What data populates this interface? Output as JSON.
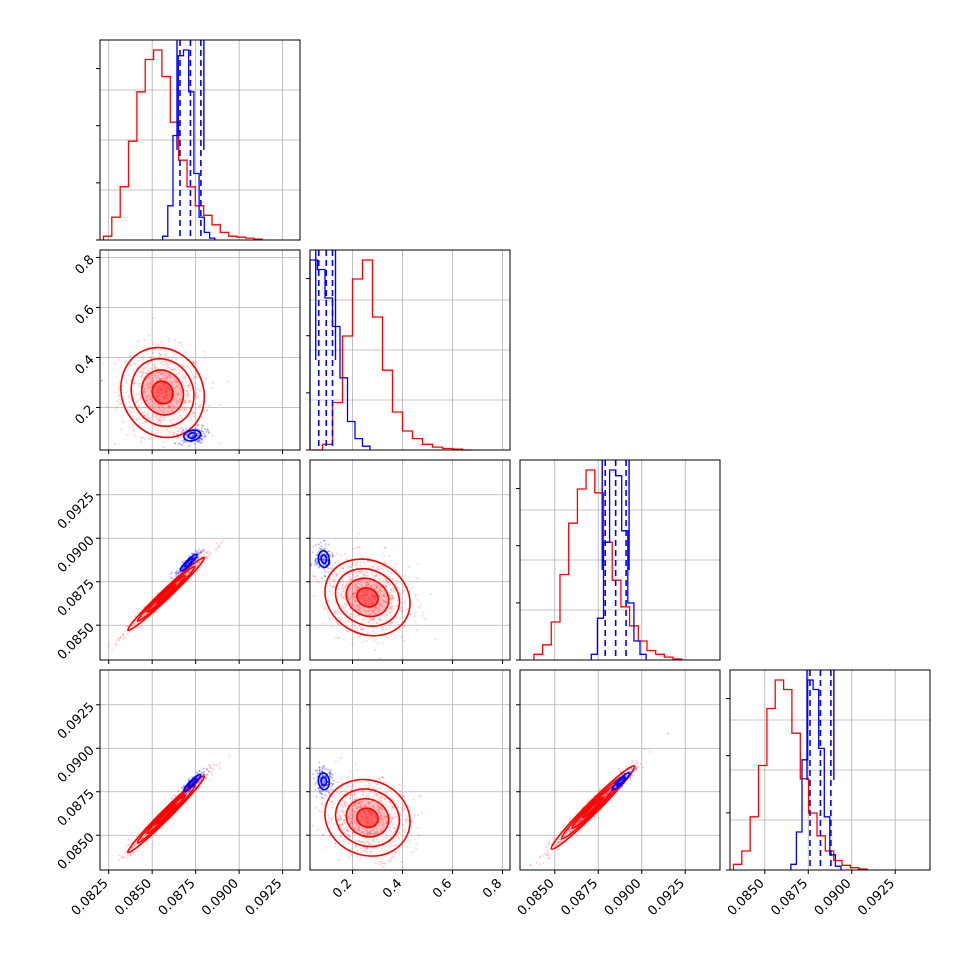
{
  "chart_data": {
    "type": "corner",
    "grid": true,
    "colors": {
      "sample_a": "#0000ff",
      "sample_b": "#ff0000",
      "grid": "#b0b0b0",
      "frame": "#000000"
    },
    "parameters": [
      {
        "range": [
          0.082,
          0.0935
        ],
        "ticks": [
          "0.0825",
          "0.0850",
          "0.0875",
          "0.0900",
          "0.0925"
        ]
      },
      {
        "range": [
          0.03,
          0.83
        ],
        "ticks": [
          "0.2",
          "0.4",
          "0.6",
          "0.8"
        ]
      },
      {
        "range": [
          0.083,
          0.0945
        ],
        "ticks": [
          "0.0850",
          "0.0875",
          "0.0900",
          "0.0925"
        ]
      },
      {
        "range": [
          0.083,
          0.0945
        ],
        "ticks": [
          "0.0850",
          "0.0875",
          "0.0900",
          "0.0925"
        ]
      }
    ],
    "x_tick_labels": [
      {
        "param": 0,
        "ticks": [
          "0.0825",
          "0.0850",
          "0.0875",
          "0.0900",
          "0.0925"
        ]
      },
      {
        "param": 1,
        "ticks": [
          "0.2",
          "0.4",
          "0.6",
          "0.8"
        ]
      },
      {
        "param": 2,
        "ticks": [
          "0.0850",
          "0.0875",
          "0.0900",
          "0.0925"
        ]
      },
      {
        "param": 3,
        "ticks": [
          "0.0850",
          "0.0875",
          "0.0900",
          "0.0925"
        ]
      }
    ],
    "y_tick_labels": [
      {
        "param": 1,
        "ticks": [
          "0.2",
          "0.4",
          "0.6",
          "0.8"
        ]
      },
      {
        "param": 2,
        "ticks": [
          "0.0850",
          "0.0875",
          "0.0900",
          "0.0925"
        ]
      },
      {
        "param": 3,
        "ticks": [
          "0.0850",
          "0.0875",
          "0.0900",
          "0.0925"
        ]
      }
    ],
    "marginals": [
      {
        "param": 0,
        "quantiles": [
          0.0866,
          0.0872,
          0.0878
        ],
        "red_bins": {
          "start": 0.0822,
          "width": 0.00048,
          "counts": [
            0.02,
            0.12,
            0.28,
            0.52,
            0.78,
            0.95,
            1.0,
            0.86,
            0.62,
            0.42,
            0.28,
            0.18,
            0.13,
            0.08,
            0.04,
            0.02,
            0.015,
            0.01,
            0.005
          ]
        },
        "blue_bins": {
          "start": 0.0856,
          "width": 0.0003,
          "counts": [
            0.02,
            0.18,
            0.55,
            0.97,
            1.0,
            0.78,
            0.35,
            0.12,
            0.04,
            0.01
          ]
        }
      },
      {
        "param": 1,
        "quantiles": [
          0.065,
          0.095,
          0.12
        ],
        "red_bins": {
          "start": 0.04,
          "width": 0.04,
          "counts": [
            0.0,
            0.03,
            0.25,
            0.6,
            0.9,
            1.0,
            0.7,
            0.42,
            0.2,
            0.1,
            0.06,
            0.03,
            0.015,
            0.008,
            0.004,
            0.0
          ]
        },
        "blue_bins": {
          "start": 0.03,
          "width": 0.03,
          "counts": [
            1.0,
            0.95,
            0.8,
            0.65,
            0.38,
            0.15,
            0.06,
            0.02
          ]
        }
      },
      {
        "param": 2,
        "quantiles": [
          0.0879,
          0.0885,
          0.0891
        ],
        "red_bins": {
          "start": 0.0838,
          "width": 0.0005,
          "counts": [
            0.03,
            0.08,
            0.2,
            0.45,
            0.72,
            0.9,
            1.0,
            0.88,
            0.62,
            0.42,
            0.28,
            0.18,
            0.1,
            0.05,
            0.03,
            0.015,
            0.005
          ]
        },
        "blue_bins": {
          "start": 0.0871,
          "width": 0.00035,
          "counts": [
            0.03,
            0.22,
            0.62,
            1.0,
            0.97,
            0.68,
            0.3,
            0.1,
            0.03
          ]
        }
      },
      {
        "param": 3,
        "quantiles": [
          0.0876,
          0.0882,
          0.0888
        ],
        "red_bins": {
          "start": 0.0832,
          "width": 0.00048,
          "counts": [
            0.03,
            0.1,
            0.28,
            0.55,
            0.85,
            1.0,
            0.95,
            0.72,
            0.48,
            0.3,
            0.18,
            0.1,
            0.05,
            0.025,
            0.012,
            0.005
          ]
        },
        "blue_bins": {
          "start": 0.0865,
          "width": 0.00032,
          "counts": [
            0.03,
            0.2,
            0.58,
            1.0,
            0.95,
            0.64,
            0.28,
            0.08,
            0.02
          ]
        }
      }
    ],
    "pairs": [
      {
        "px": 0,
        "py": 1,
        "red": {
          "center": [
            0.0856,
            0.26
          ],
          "sx": 0.0012,
          "sy": 0.09,
          "rho": -0.1
        },
        "blue": {
          "center": [
            0.0873,
            0.088
          ],
          "sx": 0.0004,
          "sy": 0.018,
          "rho": 0.2
        }
      },
      {
        "px": 0,
        "py": 2,
        "red": {
          "center": [
            0.0858,
            0.0868
          ],
          "sx": 0.0011,
          "sy": 0.00105,
          "rho": 0.985
        },
        "blue": {
          "center": [
            0.0871,
            0.0886
          ],
          "sx": 0.0004,
          "sy": 0.0004,
          "rho": 0.9
        }
      },
      {
        "px": 0,
        "py": 3,
        "red": {
          "center": [
            0.0858,
            0.0862
          ],
          "sx": 0.0011,
          "sy": 0.0011,
          "rho": 0.985
        },
        "blue": {
          "center": [
            0.0873,
            0.088
          ],
          "sx": 0.0004,
          "sy": 0.0004,
          "rho": 0.9
        }
      },
      {
        "px": 1,
        "py": 2,
        "red": {
          "center": [
            0.26,
            0.0866
          ],
          "sx": 0.085,
          "sy": 0.0011,
          "rho": -0.15
        },
        "blue": {
          "center": [
            0.085,
            0.0888
          ],
          "sx": 0.018,
          "sy": 0.0004,
          "rho": -0.1
        }
      },
      {
        "px": 1,
        "py": 3,
        "red": {
          "center": [
            0.26,
            0.086
          ],
          "sx": 0.085,
          "sy": 0.0011,
          "rho": -0.1
        },
        "blue": {
          "center": [
            0.085,
            0.0881
          ],
          "sx": 0.018,
          "sy": 0.0004,
          "rho": -0.1
        }
      },
      {
        "px": 2,
        "py": 3,
        "red": {
          "center": [
            0.0872,
            0.0866
          ],
          "sx": 0.0012,
          "sy": 0.0012,
          "rho": 0.98
        },
        "blue": {
          "center": [
            0.0888,
            0.0881
          ],
          "sx": 0.0004,
          "sy": 0.0004,
          "rho": 0.9
        }
      }
    ]
  }
}
